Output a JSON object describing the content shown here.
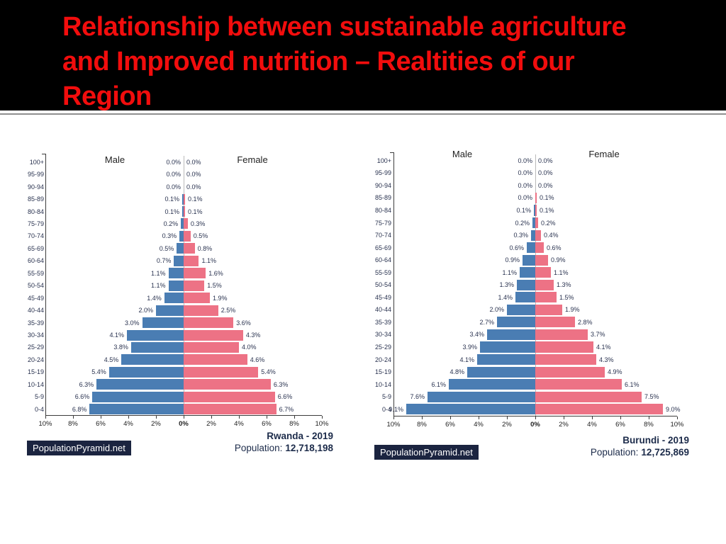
{
  "slide": {
    "title_lines": [
      "Relationship between sustainable agriculture",
      "and Improved nutrition – Realtities of our",
      "Region"
    ],
    "title_color": "#f20d0d",
    "header_bg": "#000000"
  },
  "chart_data": [
    {
      "type": "bar",
      "subtype": "population_pyramid",
      "country_year": "Rwanda - 2019",
      "population_prefix": "Population:",
      "population_value": "12,718,198",
      "male_label": "Male",
      "female_label": "Female",
      "watermark": "PopulationPyramid.net",
      "value_suffix": "%",
      "xlim_pct": 10,
      "x_tick_labels": [
        "10%",
        "8%",
        "6%",
        "4%",
        "2%",
        "0%",
        "2%",
        "4%",
        "6%",
        "8%",
        "10%"
      ],
      "age_groups": [
        "100+",
        "95-99",
        "90-94",
        "85-89",
        "80-84",
        "75-79",
        "70-74",
        "65-69",
        "60-64",
        "55-59",
        "50-54",
        "45-49",
        "40-44",
        "35-39",
        "30-34",
        "25-29",
        "20-24",
        "15-19",
        "10-14",
        "5-9",
        "0-4"
      ],
      "series": [
        {
          "name": "Male",
          "color": "#4a7db3",
          "values": [
            0.0,
            0.0,
            0.0,
            0.1,
            0.1,
            0.2,
            0.3,
            0.5,
            0.7,
            1.1,
            1.1,
            1.4,
            2.0,
            3.0,
            4.1,
            3.8,
            4.5,
            5.4,
            6.3,
            6.6,
            6.8
          ]
        },
        {
          "name": "Female",
          "color": "#ed7285",
          "values": [
            0.0,
            0.0,
            0.0,
            0.1,
            0.1,
            0.3,
            0.5,
            0.8,
            1.1,
            1.6,
            1.5,
            1.9,
            2.5,
            3.6,
            4.3,
            4.0,
            4.6,
            5.4,
            6.3,
            6.6,
            6.7
          ]
        }
      ]
    },
    {
      "type": "bar",
      "subtype": "population_pyramid",
      "country_year": "Burundi - 2019",
      "population_prefix": "Population:",
      "population_value": "12,725,869",
      "male_label": "Male",
      "female_label": "Female",
      "watermark": "PopulationPyramid.net",
      "value_suffix": "%",
      "xlim_pct": 10,
      "x_tick_labels": [
        "10%",
        "8%",
        "6%",
        "4%",
        "2%",
        "0%",
        "2%",
        "4%",
        "6%",
        "8%",
        "10%"
      ],
      "age_groups": [
        "100+",
        "95-99",
        "90-94",
        "85-89",
        "80-84",
        "75-79",
        "70-74",
        "65-69",
        "60-64",
        "55-59",
        "50-54",
        "45-49",
        "40-44",
        "35-39",
        "30-34",
        "25-29",
        "20-24",
        "15-19",
        "10-14",
        "5-9",
        "0-4"
      ],
      "series": [
        {
          "name": "Male",
          "color": "#4a7db3",
          "values": [
            0.0,
            0.0,
            0.0,
            0.0,
            0.1,
            0.2,
            0.3,
            0.6,
            0.9,
            1.1,
            1.3,
            1.4,
            2.0,
            2.7,
            3.4,
            3.9,
            4.1,
            4.8,
            6.1,
            7.6,
            9.1
          ]
        },
        {
          "name": "Female",
          "color": "#ed7285",
          "values": [
            0.0,
            0.0,
            0.0,
            0.1,
            0.1,
            0.2,
            0.4,
            0.6,
            0.9,
            1.1,
            1.3,
            1.5,
            1.9,
            2.8,
            3.7,
            4.1,
            4.3,
            4.9,
            6.1,
            7.5,
            9.0
          ]
        }
      ]
    }
  ]
}
